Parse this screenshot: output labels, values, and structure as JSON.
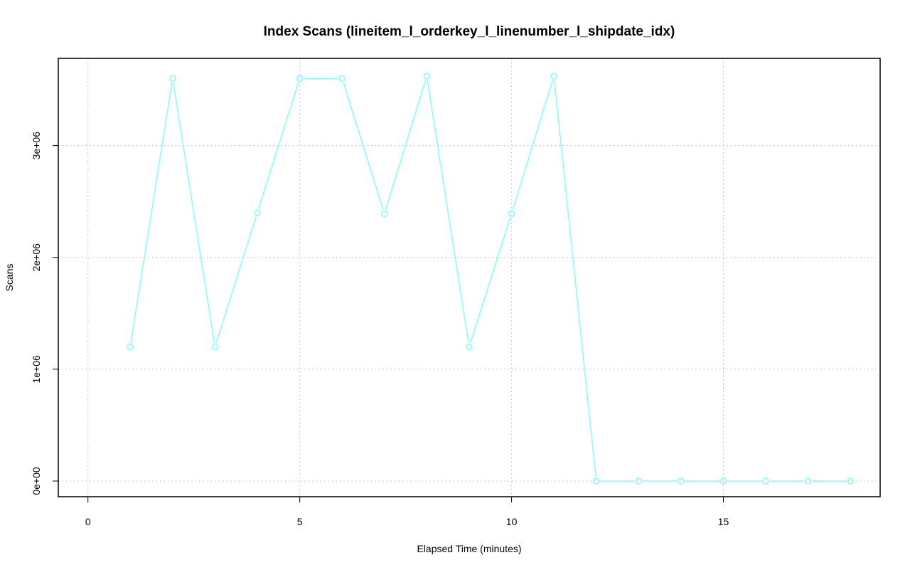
{
  "chart_data": {
    "type": "line",
    "title": "Index Scans (lineitem_l_orderkey_l_linenumber_l_shipdate_idx)",
    "xlabel": "Elapsed Time (minutes)",
    "ylabel": "Scans",
    "xlim": [
      -0.7,
      18.7
    ],
    "ylim": [
      -140000,
      3780000
    ],
    "x_ticks": [
      0,
      5,
      10,
      15
    ],
    "x_tick_labels": [
      "0",
      "5",
      "10",
      "15"
    ],
    "y_ticks": [
      0,
      1000000,
      2000000,
      3000000
    ],
    "y_tick_labels": [
      "0e+00",
      "1e+06",
      "2e+06",
      "3e+06"
    ],
    "grid": true,
    "series": [
      {
        "color": "#7fffff",
        "marker": "circle",
        "x": [
          1,
          2,
          3,
          4,
          5,
          6,
          7,
          8,
          9,
          10,
          11,
          12,
          13,
          14,
          15,
          16,
          17,
          18
        ],
        "y": [
          1200000,
          3600000,
          1200000,
          2400000,
          3600000,
          3600000,
          2390000,
          3620000,
          1200000,
          2390000,
          3620000,
          0,
          0,
          0,
          0,
          0,
          0,
          0
        ]
      }
    ]
  }
}
